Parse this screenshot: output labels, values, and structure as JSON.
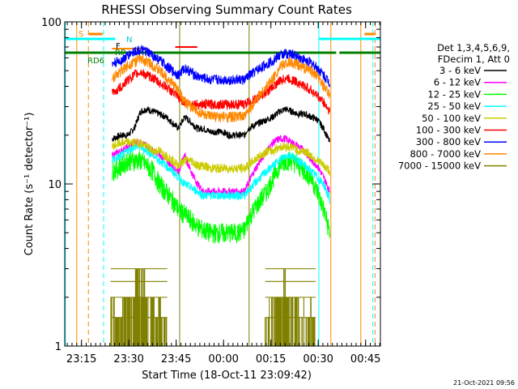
{
  "chart_data": {
    "type": "line",
    "title": "RHESSI Observing Summary Count Rates",
    "xlabel": "Start Time (18-Oct-11 23:09:42)",
    "ylabel": "Count Rate (s⁻¹ detector⁻¹)",
    "yscale": "log",
    "ylim": [
      1,
      100
    ],
    "xlim_minutes": [
      0,
      100
    ],
    "x_ticks": [
      {
        "label": "23:15",
        "minute": 5.3
      },
      {
        "label": "23:30",
        "minute": 20.3
      },
      {
        "label": "23:45",
        "minute": 35.3
      },
      {
        "label": "00:00",
        "minute": 50.3
      },
      {
        "label": "00:15",
        "minute": 65.3
      },
      {
        "label": "00:30",
        "minute": 80.3
      },
      {
        "label": "00:45",
        "minute": 95.3
      }
    ],
    "y_ticks": [
      {
        "label": "100",
        "value": 100
      },
      {
        "label": "10",
        "value": 10
      },
      {
        "label": "1",
        "value": 1
      }
    ],
    "legend_header": [
      "Det 1,3,4,5,6,9,",
      "FDecim 1, Att 0"
    ],
    "legend_position": "right",
    "flag_labels": {
      "saa": "S",
      "night": "N",
      "flare": "F",
      "rd": "RD6",
      "rp": "RP"
    },
    "series": [
      {
        "name": "3 - 6 keV",
        "color": "#000000",
        "x": [
          15,
          18,
          20,
          22,
          24,
          26,
          28,
          30,
          32,
          34,
          36,
          38,
          40,
          42,
          44,
          46,
          48,
          50,
          52,
          55,
          57,
          58,
          60,
          62,
          64,
          66,
          68,
          70,
          72,
          74,
          76,
          78,
          80,
          82,
          84
        ],
        "y": [
          19,
          20,
          20,
          22,
          28,
          29,
          28,
          27,
          26,
          24,
          22,
          26,
          24,
          22,
          22,
          21,
          21,
          21,
          20,
          20,
          20,
          22,
          23,
          24,
          25,
          26,
          28,
          29,
          28,
          27,
          27,
          26,
          25,
          22,
          18
        ]
      },
      {
        "name": "6 - 12 keV",
        "color": "#ff00ff",
        "x": [
          15,
          18,
          20,
          22,
          24,
          26,
          28,
          30,
          32,
          34,
          36,
          38,
          40,
          42,
          44,
          46,
          48,
          50,
          52,
          55,
          57,
          58,
          60,
          62,
          64,
          66,
          68,
          70,
          72,
          74,
          76,
          78,
          80,
          82,
          84
        ],
        "y": [
          15,
          16,
          17,
          18,
          18,
          17,
          16,
          15,
          14,
          13,
          12,
          15,
          12,
          10,
          9,
          9,
          9,
          9,
          9,
          9,
          9,
          10,
          12,
          14,
          16,
          18,
          19,
          19,
          18,
          17,
          16,
          14,
          13,
          11,
          9
        ]
      },
      {
        "name": "12 - 25 keV",
        "color": "#00ff00",
        "x": [
          15,
          18,
          20,
          22,
          24,
          26,
          28,
          30,
          32,
          34,
          36,
          38,
          40,
          42,
          44,
          46,
          48,
          50,
          52,
          55,
          57,
          58,
          60,
          62,
          64,
          66,
          68,
          70,
          72,
          74,
          76,
          78,
          80,
          82,
          84
        ],
        "y": [
          12,
          13,
          14,
          14,
          14,
          13,
          12,
          10,
          9,
          8,
          7,
          6.5,
          6,
          5.5,
          5.2,
          5,
          5,
          5,
          5,
          5,
          5.2,
          6,
          7,
          8,
          9,
          11,
          13,
          14,
          14,
          13,
          12,
          11,
          9,
          7,
          5
        ]
      },
      {
        "name": "25 - 50 keV",
        "color": "#00ffff",
        "x": [
          15,
          18,
          20,
          22,
          24,
          26,
          28,
          30,
          32,
          34,
          36,
          38,
          40,
          42,
          44,
          46,
          48,
          50,
          52,
          55,
          57,
          58,
          60,
          62,
          64,
          66,
          68,
          70,
          72,
          74,
          76,
          78,
          80,
          82,
          84
        ],
        "y": [
          14,
          15,
          16,
          17,
          17,
          16,
          15,
          14,
          13,
          12,
          11,
          10,
          9.5,
          9,
          8.5,
          8.5,
          8.5,
          8.5,
          8.5,
          8.5,
          8.5,
          9,
          10,
          11,
          12,
          13,
          14,
          15,
          15,
          14,
          13,
          12,
          11,
          10,
          8
        ]
      },
      {
        "name": "50 - 100 keV",
        "color": "#cccc00",
        "x": [
          15,
          18,
          20,
          22,
          24,
          26,
          28,
          30,
          32,
          34,
          36,
          38,
          40,
          42,
          44,
          46,
          48,
          50,
          52,
          55,
          57,
          58,
          60,
          62,
          64,
          66,
          68,
          70,
          72,
          74,
          76,
          78,
          80,
          82,
          84
        ],
        "y": [
          17,
          18,
          18,
          18,
          18,
          17,
          16,
          16,
          15,
          14,
          13,
          14,
          14,
          13,
          13,
          12.5,
          12.5,
          12.5,
          12.5,
          12.5,
          12.5,
          13,
          14,
          15,
          16,
          16,
          17,
          17,
          17,
          16,
          16,
          15,
          14,
          13,
          12
        ]
      },
      {
        "name": "100 - 300 keV",
        "color": "#ff0000",
        "x": [
          15,
          18,
          20,
          22,
          24,
          26,
          28,
          30,
          32,
          34,
          36,
          38,
          40,
          42,
          44,
          46,
          48,
          50,
          52,
          55,
          57,
          58,
          60,
          62,
          64,
          66,
          68,
          70,
          72,
          74,
          76,
          78,
          80,
          82,
          84
        ],
        "y": [
          36,
          40,
          44,
          47,
          49,
          47,
          45,
          42,
          40,
          37,
          34,
          32,
          31,
          31,
          31,
          31,
          31,
          31,
          31,
          31,
          31,
          32,
          33,
          35,
          37,
          40,
          43,
          45,
          44,
          42,
          40,
          38,
          35,
          32,
          28
        ]
      },
      {
        "name": "300 - 800 keV",
        "color": "#0000ff",
        "x": [
          15,
          18,
          20,
          22,
          24,
          26,
          28,
          30,
          32,
          34,
          36,
          38,
          40,
          42,
          44,
          46,
          48,
          50,
          52,
          55,
          57,
          58,
          60,
          62,
          64,
          66,
          68,
          70,
          72,
          74,
          76,
          78,
          80,
          82,
          84
        ],
        "y": [
          55,
          58,
          62,
          66,
          67,
          65,
          62,
          58,
          54,
          50,
          47,
          52,
          49,
          46,
          45,
          44,
          44,
          44,
          44,
          44,
          44,
          46,
          49,
          52,
          55,
          58,
          62,
          64,
          63,
          61,
          58,
          56,
          52,
          47,
          42
        ]
      },
      {
        "name": "800 - 7000 keV",
        "color": "#ff8800",
        "x": [
          15,
          18,
          20,
          22,
          24,
          26,
          28,
          30,
          32,
          34,
          36,
          38,
          40,
          42,
          44,
          46,
          48,
          50,
          52,
          55,
          57,
          58,
          60,
          62,
          64,
          66,
          68,
          70,
          72,
          74,
          76,
          78,
          80,
          82,
          84
        ],
        "y": [
          45,
          50,
          54,
          57,
          59,
          57,
          54,
          50,
          46,
          42,
          38,
          32,
          30,
          28,
          27,
          26,
          26,
          26,
          26,
          26,
          26,
          28,
          32,
          36,
          40,
          45,
          52,
          56,
          56,
          54,
          52,
          50,
          46,
          40,
          35
        ]
      },
      {
        "name": "7000 - 15000 keV",
        "color": "#808000",
        "x": [
          15,
          17,
          19,
          20,
          22,
          23,
          24,
          25,
          26,
          27,
          28,
          29,
          30,
          31,
          32,
          64,
          65,
          66,
          67,
          68,
          69,
          70,
          71,
          72,
          73,
          74,
          75,
          76,
          77,
          78,
          79
        ],
        "y": [
          2,
          1.5,
          2,
          2,
          2.5,
          3,
          2.5,
          3,
          2.5,
          2,
          2,
          1.5,
          2,
          1.5,
          1.5,
          1.5,
          2,
          2.5,
          2,
          2,
          2.5,
          3,
          2,
          2.5,
          2,
          2,
          1.5,
          2,
          1.5,
          2,
          1.5
        ]
      }
    ],
    "timestamp": "21-Oct-2021 09:56"
  }
}
